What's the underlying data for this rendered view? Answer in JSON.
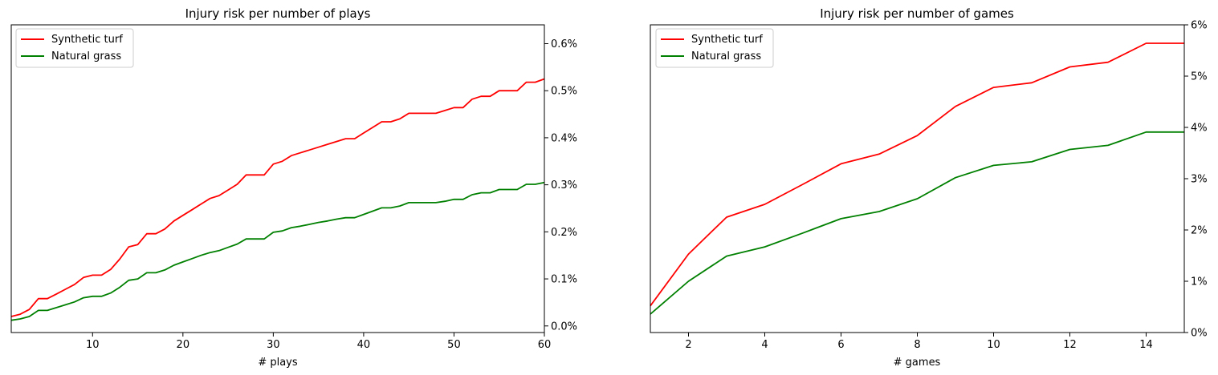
{
  "colors": {
    "turf": "#ff0000",
    "grass": "#008000"
  },
  "chart_data": [
    {
      "type": "line",
      "title": "Injury risk per number of plays",
      "xlabel": "# plays",
      "ylabel": "",
      "xlim": [
        1,
        60
      ],
      "ylim": [
        -0.00014,
        0.0064
      ],
      "xticks": [
        10,
        20,
        30,
        40,
        50,
        60
      ],
      "yticks": [
        0,
        0.001,
        0.002,
        0.003,
        0.004,
        0.005,
        0.006
      ],
      "ytick_labels": [
        "0.0%",
        "0.1%",
        "0.2%",
        "0.3%",
        "0.4%",
        "0.5%",
        "0.6%"
      ],
      "y_axis_side": "right",
      "legend_placement": "upper-left",
      "grid": false,
      "x": [
        1,
        2,
        3,
        4,
        5,
        6,
        7,
        8,
        9,
        10,
        11,
        12,
        13,
        14,
        15,
        16,
        17,
        18,
        19,
        20,
        21,
        22,
        23,
        24,
        25,
        26,
        27,
        28,
        29,
        30,
        31,
        32,
        33,
        34,
        35,
        36,
        37,
        38,
        39,
        40,
        41,
        42,
        43,
        44,
        45,
        46,
        47,
        48,
        49,
        50,
        51,
        52,
        53,
        54,
        55,
        56,
        57,
        58,
        59,
        60
      ],
      "series": [
        {
          "name": "Synthetic turf",
          "color_key": "turf",
          "values": [
            0.0002,
            0.00025,
            0.00035,
            0.00058,
            0.00058,
            0.00068,
            0.00078,
            0.00088,
            0.00103,
            0.00108,
            0.00108,
            0.0012,
            0.00142,
            0.00168,
            0.00173,
            0.00196,
            0.00196,
            0.00206,
            0.00223,
            0.00235,
            0.00247,
            0.00259,
            0.00271,
            0.00277,
            0.00289,
            0.00301,
            0.00321,
            0.00321,
            0.00321,
            0.00344,
            0.0035,
            0.00362,
            0.00368,
            0.00374,
            0.0038,
            0.00386,
            0.00392,
            0.00398,
            0.00398,
            0.0041,
            0.00422,
            0.00434,
            0.00434,
            0.0044,
            0.00452,
            0.00452,
            0.00452,
            0.00452,
            0.00458,
            0.00464,
            0.00464,
            0.00482,
            0.00488,
            0.00488,
            0.005,
            0.005,
            0.005,
            0.00518,
            0.00518,
            0.00525
          ]
        },
        {
          "name": "Natural grass",
          "color_key": "grass",
          "values": [
            0.00012,
            0.00015,
            0.0002,
            0.00033,
            0.00033,
            0.00039,
            0.00045,
            0.00051,
            0.0006,
            0.00063,
            0.00063,
            0.0007,
            0.00082,
            0.00097,
            0.001,
            0.00113,
            0.00113,
            0.00119,
            0.00129,
            0.00136,
            0.00143,
            0.0015,
            0.00156,
            0.0016,
            0.00167,
            0.00174,
            0.00185,
            0.00185,
            0.00185,
            0.00199,
            0.00202,
            0.00209,
            0.00212,
            0.00216,
            0.0022,
            0.00223,
            0.00227,
            0.0023,
            0.0023,
            0.00237,
            0.00244,
            0.00251,
            0.00251,
            0.00255,
            0.00262,
            0.00262,
            0.00262,
            0.00262,
            0.00265,
            0.00269,
            0.00269,
            0.00279,
            0.00283,
            0.00283,
            0.0029,
            0.0029,
            0.0029,
            0.00301,
            0.00301,
            0.00305
          ]
        }
      ]
    },
    {
      "type": "line",
      "title": "Injury risk per number of games",
      "xlabel": "# games",
      "ylabel": "",
      "xlim": [
        1,
        15
      ],
      "ylim": [
        0,
        0.06
      ],
      "xticks": [
        2,
        4,
        6,
        8,
        10,
        12,
        14
      ],
      "yticks": [
        0,
        0.01,
        0.02,
        0.03,
        0.04,
        0.05,
        0.06
      ],
      "ytick_labels": [
        "0%",
        "1%",
        "2%",
        "3%",
        "4%",
        "5%",
        "6%"
      ],
      "y_axis_side": "right",
      "legend_placement": "upper-left",
      "grid": false,
      "x": [
        1,
        2,
        3,
        4,
        5,
        6,
        7,
        8,
        9,
        10,
        11,
        12,
        13,
        14,
        15
      ],
      "series": [
        {
          "name": "Synthetic turf",
          "color_key": "turf",
          "values": [
            0.0052,
            0.0153,
            0.0225,
            0.025,
            0.0289,
            0.0329,
            0.0348,
            0.0384,
            0.0441,
            0.0478,
            0.0487,
            0.0518,
            0.0527,
            0.0564,
            0.0564
          ]
        },
        {
          "name": "Natural grass",
          "color_key": "grass",
          "values": [
            0.0036,
            0.01,
            0.0149,
            0.0167,
            0.0194,
            0.0222,
            0.0236,
            0.0261,
            0.0302,
            0.0326,
            0.0333,
            0.0357,
            0.0365,
            0.0391,
            0.0391
          ]
        }
      ]
    }
  ]
}
